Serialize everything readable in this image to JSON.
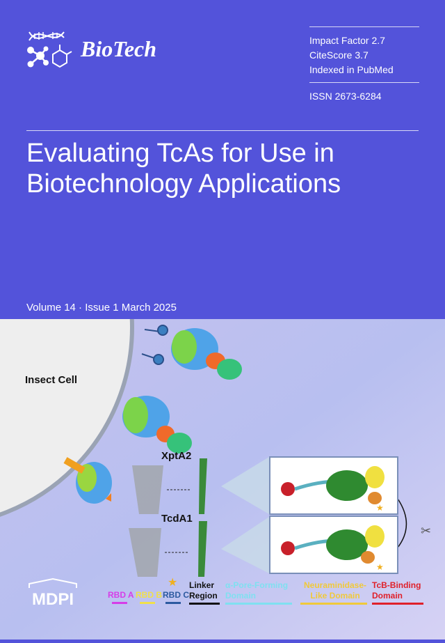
{
  "journal": {
    "name": "BioTech",
    "logo_icon": "dna-molecule-icon"
  },
  "metrics": {
    "impact_factor": "Impact Factor 2.7",
    "citescore": "CiteScore 3.7",
    "indexed": "Indexed in PubMed",
    "issn": "ISSN 2673-6284"
  },
  "article": {
    "title": "Evaluating TcAs for Use in Biotechnology Applications"
  },
  "issue": {
    "volume_issue": "Volume 14 · Issue 1 March 2025"
  },
  "figure": {
    "cell_label": "Insect Cell",
    "protein1": "XptA2",
    "protein2": "TcdA1",
    "legend": [
      {
        "label": "RBD A",
        "color": "#d63de8"
      },
      {
        "label": "RBD B",
        "color": "#f0e04a"
      },
      {
        "label": "RBD C",
        "color": "#2c5aa0"
      },
      {
        "label": "Linker Region",
        "color": "#111111"
      },
      {
        "label": "α-Pore-Forming Domain",
        "color": "#7fe0f0"
      },
      {
        "label": "Neuraminidase-Like Domain",
        "color": "#f0c93a"
      },
      {
        "label": "TcB-Binding Domain",
        "color": "#e0202a"
      }
    ]
  },
  "publisher": {
    "name": "MDPI"
  },
  "colors": {
    "background": "#5353da",
    "art_bg": "#c9c6f0"
  }
}
